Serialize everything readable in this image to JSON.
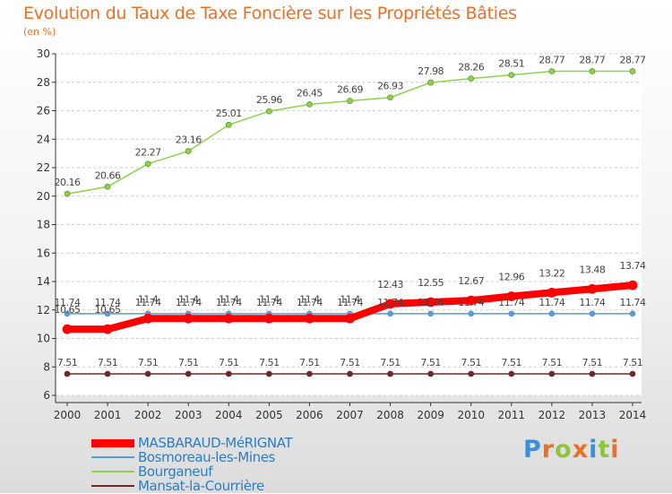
{
  "chart_data": {
    "type": "line",
    "title": "Evolution du Taux de Taxe Foncière sur les Propriétés Bâties",
    "ylabel": "(en %)",
    "xlabel": "",
    "x": [
      "2000",
      "2001",
      "2002",
      "2003",
      "2004",
      "2005",
      "2006",
      "2007",
      "2008",
      "2009",
      "2010",
      "2011",
      "2012",
      "2013",
      "2014"
    ],
    "y_ticks": [
      "6",
      "8",
      "10",
      "12",
      "14",
      "16",
      "18",
      "20",
      "22",
      "24",
      "26",
      "28",
      "30"
    ],
    "ylim": [
      6,
      30
    ],
    "grid": "horizontal dashed",
    "legend_position": "bottom-left",
    "series": [
      {
        "name": "MASBARAUD-MéRIGNAT",
        "color": "#ff0000",
        "values": [
          10.65,
          10.65,
          11.4,
          11.4,
          11.4,
          11.4,
          11.4,
          11.4,
          12.43,
          12.55,
          12.67,
          12.96,
          13.22,
          13.48,
          13.74
        ],
        "labels": [
          "10.65",
          "10.65",
          "11.4",
          "11.4",
          "11.4",
          "11.4",
          "11.4",
          "11.4",
          "12.43",
          "12.55",
          "12.67",
          "12.96",
          "13.22",
          "13.48",
          "13.74"
        ]
      },
      {
        "name": "Bosmoreau-les-Mines",
        "color": "#5b9bd5",
        "values": [
          11.74,
          11.74,
          11.74,
          11.74,
          11.74,
          11.74,
          11.74,
          11.74,
          11.74,
          11.74,
          11.74,
          11.74,
          11.74,
          11.74,
          11.74
        ],
        "labels": [
          "11.74",
          "11.74",
          "11.74",
          "11.74",
          "11.74",
          "11.74",
          "11.74",
          "11.74",
          "11.74",
          "11.74",
          "11.74",
          "11.74",
          "11.74",
          "11.74",
          "11.74"
        ]
      },
      {
        "name": "Bourganeuf",
        "color": "#8fd14f",
        "values": [
          20.16,
          20.66,
          22.27,
          23.16,
          25.01,
          25.96,
          26.45,
          26.69,
          26.93,
          27.98,
          28.26,
          28.51,
          28.77,
          28.77,
          28.77
        ],
        "labels": [
          "20.16",
          "20.66",
          "22.27",
          "23.16",
          "25.01",
          "25.96",
          "26.45",
          "26.69",
          "26.93",
          "27.98",
          "28.26",
          "28.51",
          "28.77",
          "28.77",
          "28.77"
        ]
      },
      {
        "name": "Mansat-la-Courrière",
        "color": "#6b2a2a",
        "values": [
          7.51,
          7.51,
          7.51,
          7.51,
          7.51,
          7.51,
          7.51,
          7.51,
          7.51,
          7.51,
          7.51,
          7.51,
          7.51,
          7.51,
          7.51
        ],
        "labels": [
          "7.51",
          "7.51",
          "7.51",
          "7.51",
          "7.51",
          "7.51",
          "7.51",
          "7.51",
          "7.51",
          "7.51",
          "7.51",
          "7.51",
          "7.51",
          "7.51",
          "7.51"
        ]
      }
    ]
  },
  "logo": {
    "letters": [
      "P",
      "r",
      "o",
      "x",
      "i",
      "t",
      "i"
    ],
    "colors": [
      "#3a8fd9",
      "#e8712a",
      "#8fc43f",
      "#e8712a",
      "#3a8fd9",
      "#8fc43f",
      "#e8712a"
    ]
  }
}
